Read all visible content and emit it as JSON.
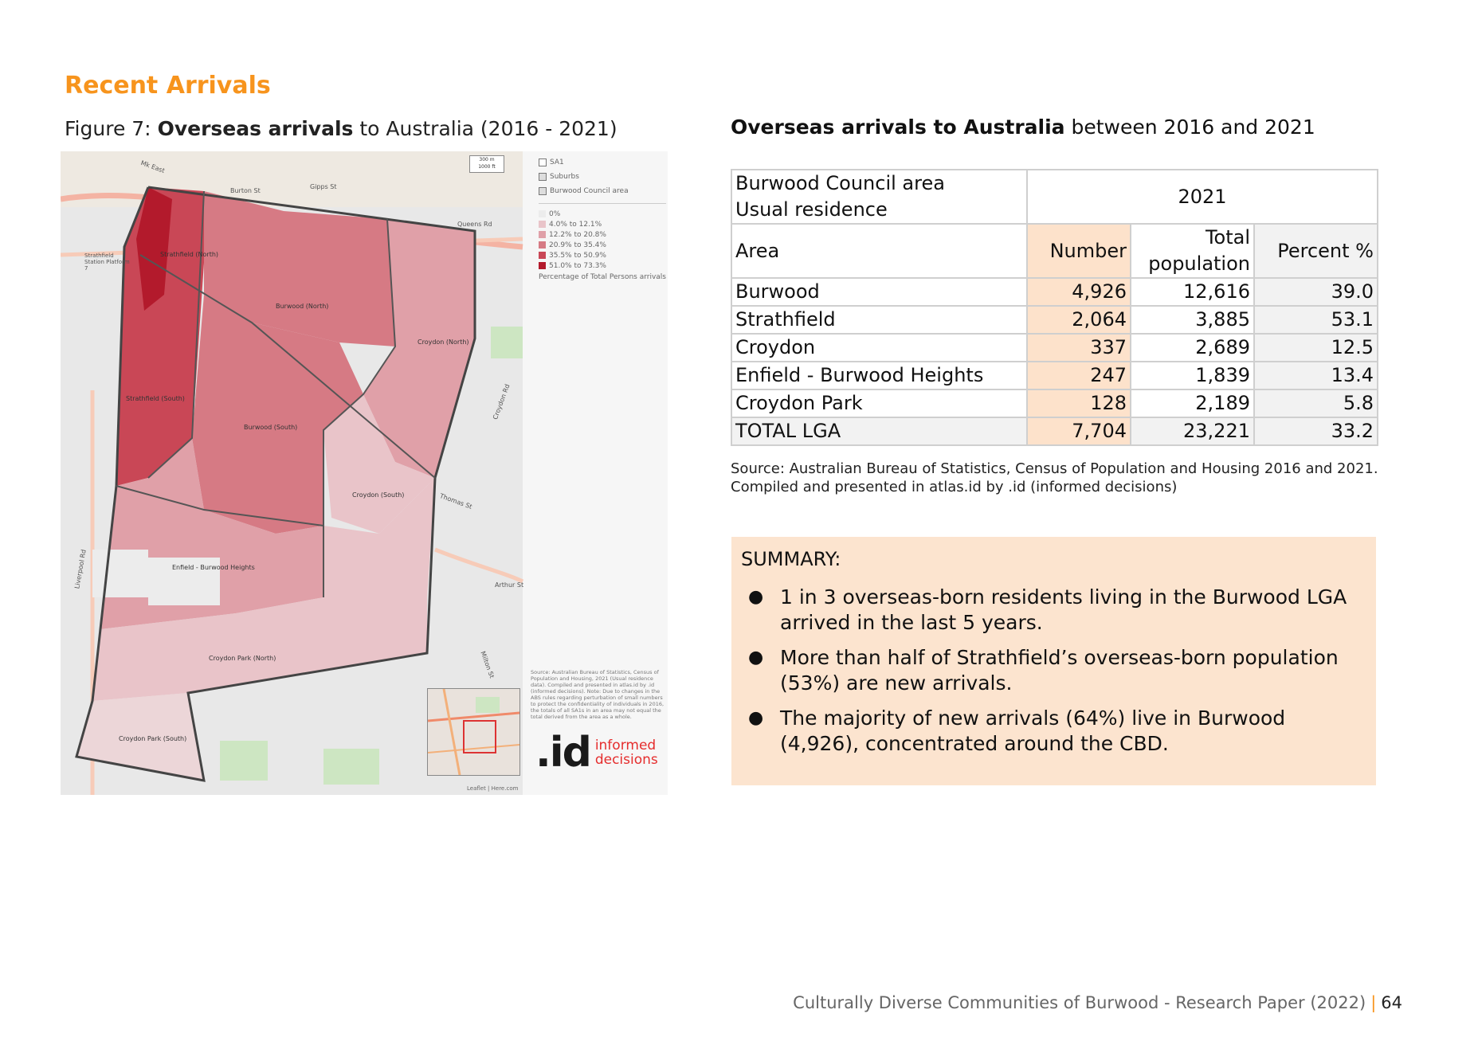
{
  "section": {
    "heading": "Recent Arrivals"
  },
  "figure": {
    "caption_prefix": "Figure 7: ",
    "caption_bold": "Overseas arrivals",
    "caption_suffix": " to Australia (2016 - 2021)",
    "scale_m": "300 m",
    "scale_ft": "1000 ft",
    "legend": {
      "layers": [
        "SA1",
        "Suburbs",
        "Burwood Council area"
      ],
      "classes": [
        {
          "label": "0%",
          "color": "#ececec"
        },
        {
          "label": "4.0% to 12.1%",
          "color": "#e9c4c9"
        },
        {
          "label": "12.2% to 20.8%",
          "color": "#e0a0a8"
        },
        {
          "label": "20.9% to 35.4%",
          "color": "#d67a84"
        },
        {
          "label": "35.5% to 50.9%",
          "color": "#c94756"
        },
        {
          "label": "51.0% to 73.3%",
          "color": "#b31a2c"
        }
      ],
      "note": "Percentage of Total Persons arrivals"
    },
    "map_labels": {
      "strathfield_north": "Strathfield (North)",
      "burwood_north": "Burwood (North)",
      "croydon_north": "Croydon (North)",
      "strathfield_south": "Strathfield (South)",
      "burwood_south": "Burwood (South)",
      "croydon_south": "Croydon (South)",
      "enfield": "Enfield - Burwood Heights",
      "croydon_park_north": "Croydon Park (North)",
      "croydon_park_south": "Croydon Park (South)"
    },
    "streets": {
      "gipps": "Gipps St",
      "queens": "Queens Rd",
      "liverpool": "Liverpool Rd",
      "thomas": "Thomas St",
      "arthur": "Arthur St",
      "croydon_rd": "Croydon Rd",
      "milton": "Milton St",
      "mk_east": "Mk East",
      "burton": "Burton St",
      "station": "Strathfield Station Platform 7"
    },
    "source_note": "Source: Australian Bureau of Statistics, Census of Population and Housing, 2021 (Usual residence data). Compiled and presented in atlas.id by .id (informed decisions). Note: Due to changes in the ABS rules regarding perturbation of small numbers to protect the confidentiality of individuals in 2016, the totals of all SA1s in an area may not equal the total derived from the area as a whole.",
    "logo_mark": ".id",
    "logo_word1": "informed",
    "logo_word2": "decisions",
    "attribution": "Leaflet | Here.com"
  },
  "table": {
    "title_bold": "Overseas arrivals to Australia",
    "title_rest": " between 2016 and 2021",
    "header_area_line1": "Burwood Council area",
    "header_area_line2": "Usual residence",
    "header_year": "2021",
    "col_area": "Area",
    "col_number": "Number",
    "col_total_line1": "Total",
    "col_total_line2": "population",
    "col_percent": "Percent %",
    "rows": [
      {
        "area": "Burwood",
        "number": "4,926",
        "total": "12,616",
        "percent": "39.0"
      },
      {
        "area": "Strathfield",
        "number": "2,064",
        "total": "3,885",
        "percent": "53.1"
      },
      {
        "area": "Croydon",
        "number": "337",
        "total": "2,689",
        "percent": "12.5"
      },
      {
        "area": "Enfield - Burwood Heights",
        "number": "247",
        "total": "1,839",
        "percent": "13.4"
      },
      {
        "area": "Croydon Park",
        "number": "128",
        "total": "2,189",
        "percent": "5.8"
      },
      {
        "area": "TOTAL LGA",
        "number": "7,704",
        "total": "23,221",
        "percent": "33.2"
      }
    ],
    "source_line1": "Source: Australian Bureau of Statistics, Census of Population and Housing 2016 and 2021.",
    "source_line2": "Compiled and presented in atlas.id by .id (informed decisions)"
  },
  "summary": {
    "heading": "SUMMARY:",
    "bullets": [
      "1 in 3 overseas-born residents living in the Burwood LGA arrived in the last 5 years.",
      "More than half of Strathfield’s overseas-born population (53%) are new arrivals.",
      "The majority of new arrivals (64%) live in Burwood (4,926), concentrated around the CBD."
    ]
  },
  "footer": {
    "title": "Culturally Diverse Communities of Burwood - Research Paper (2022)",
    "separator": "|",
    "page": "64"
  }
}
